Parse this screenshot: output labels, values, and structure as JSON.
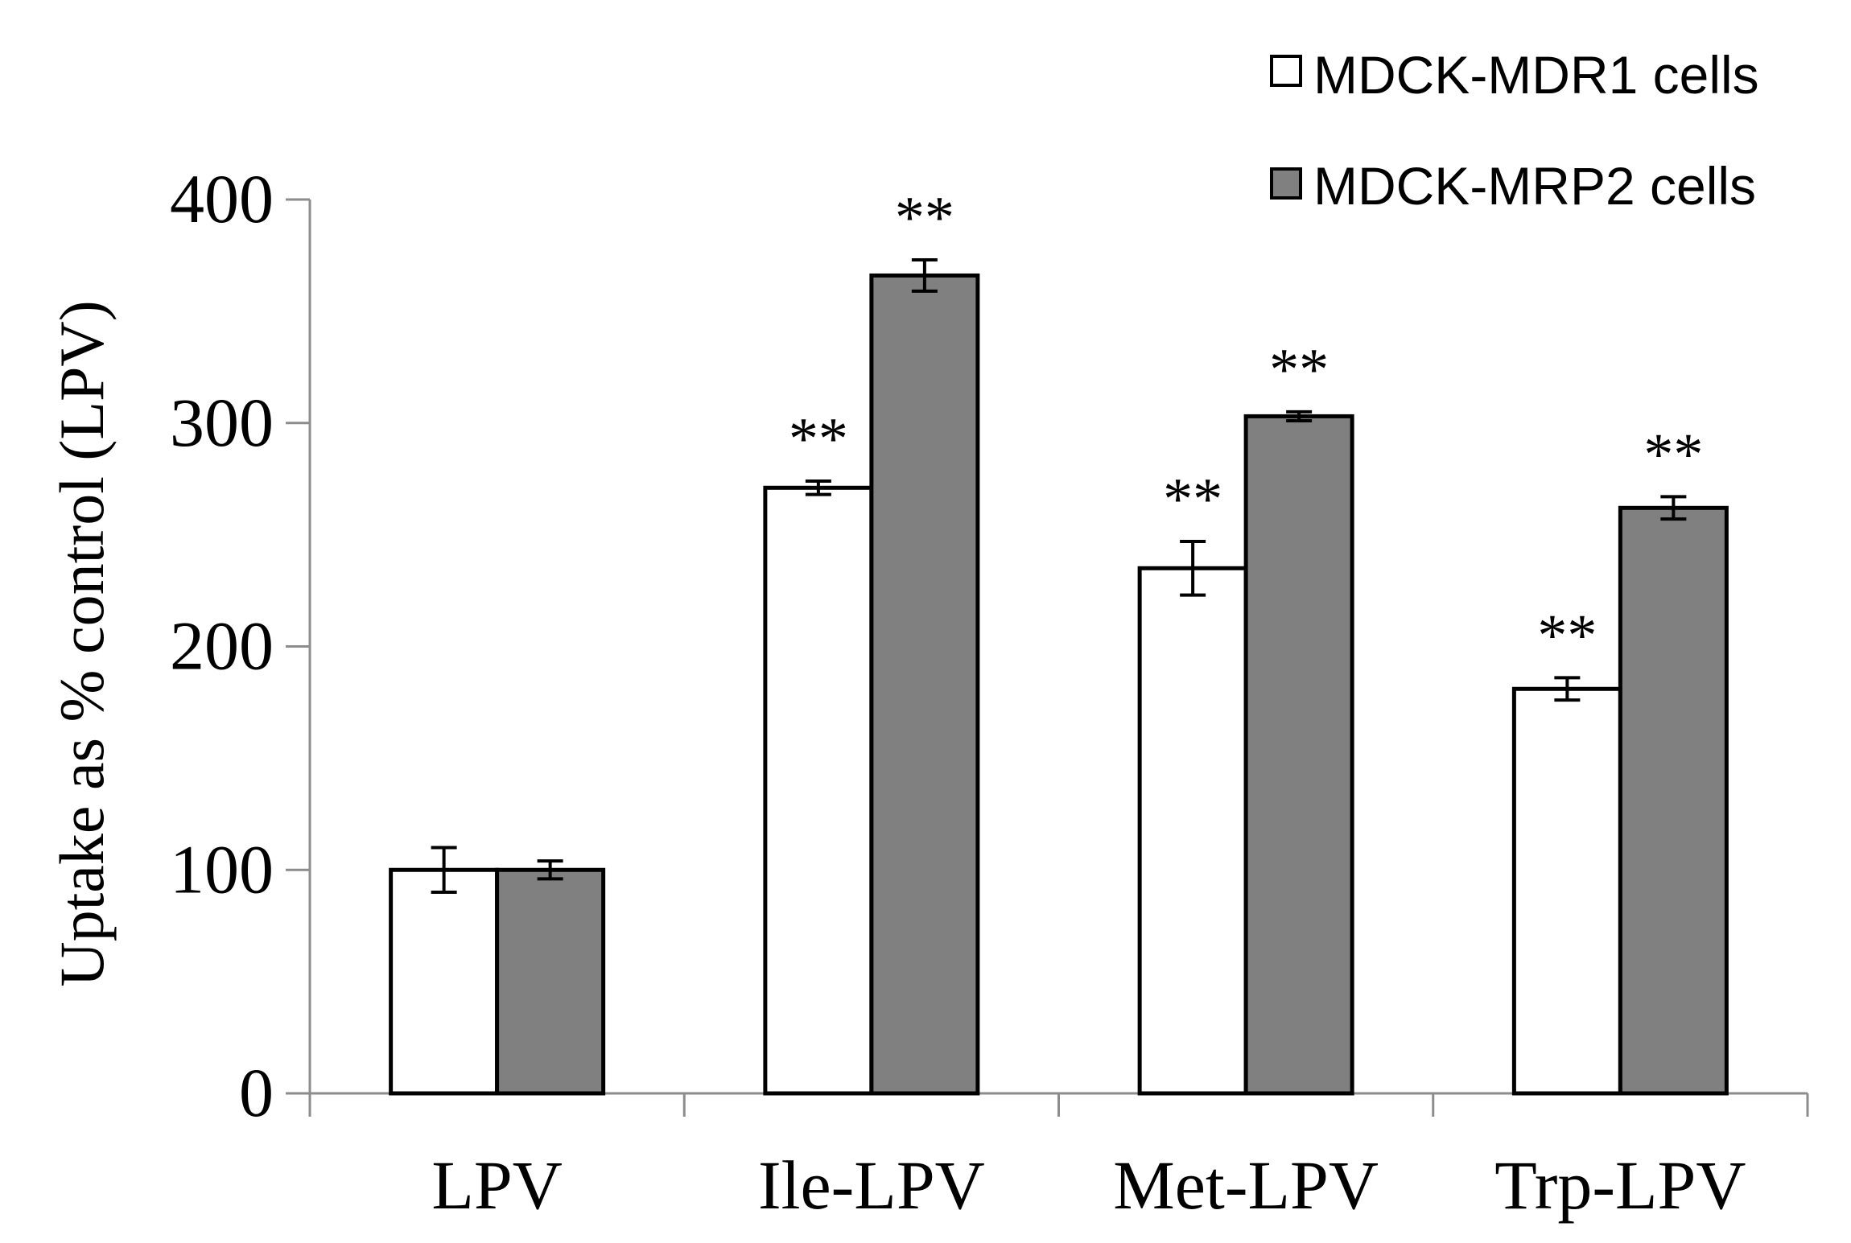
{
  "chart_data": {
    "type": "bar",
    "title": "",
    "xlabel": "",
    "ylabel": "Uptake as % control (LPV)",
    "ylim": [
      0,
      400
    ],
    "yticks": [
      "0",
      "100",
      "200",
      "300",
      "400"
    ],
    "grid": false,
    "legend_position": "top-right",
    "categories": [
      "LPV",
      "Ile-LPV",
      "Met-LPV",
      "Trp-LPV"
    ],
    "series": [
      {
        "name": "MDCK-MDR1 cells",
        "color": "#ffffff",
        "values": [
          100,
          271,
          235,
          181
        ],
        "errors": [
          10,
          3,
          12,
          5
        ],
        "significance": [
          "",
          "**",
          "**",
          "**"
        ]
      },
      {
        "name": "MDCK-MRP2 cells",
        "color": "#808080",
        "values": [
          100,
          366,
          303,
          262
        ],
        "errors": [
          4,
          7,
          2,
          5
        ],
        "significance": [
          "",
          "**",
          "**",
          "**"
        ]
      }
    ]
  }
}
